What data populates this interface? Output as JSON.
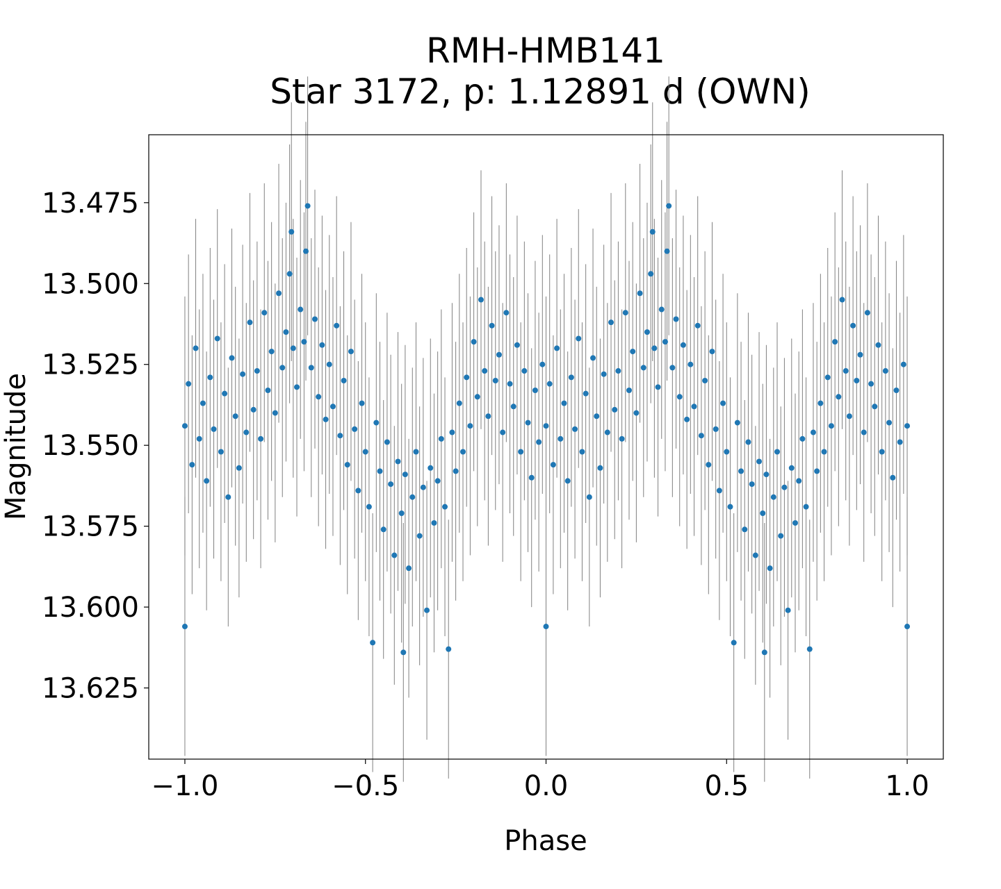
{
  "chart_data": {
    "type": "scatter",
    "title": "RMH-HMB141",
    "subtitle": "Star 3172, p: 1.12891 d (OWN)",
    "xlabel": "Phase",
    "ylabel": "Magnitude",
    "xlim": [
      -1.1,
      1.1
    ],
    "ylim": [
      13.454,
      13.647
    ],
    "y_inverted": true,
    "grid": false,
    "xticks": [
      -1.0,
      -0.5,
      0.0,
      0.5,
      1.0
    ],
    "xtick_labels": [
      "−1.0",
      "−0.5",
      "0.0",
      "0.5",
      "1.0"
    ],
    "yticks": [
      13.475,
      13.5,
      13.525,
      13.55,
      13.575,
      13.6,
      13.625
    ],
    "ytick_labels": [
      "13.475",
      "13.500",
      "13.525",
      "13.550",
      "13.575",
      "13.600",
      "13.625"
    ],
    "marker_color": "#1f77b4",
    "errorbar_color": "#808080",
    "yerr": 0.02,
    "note_repeat": "points plotted at phase and phase-1",
    "phase": [
      0.0,
      0.01,
      0.02,
      0.03,
      0.04,
      0.05,
      0.06,
      0.07,
      0.08,
      0.09,
      0.1,
      0.11,
      0.12,
      0.13,
      0.14,
      0.15,
      0.16,
      0.17,
      0.18,
      0.19,
      0.2,
      0.21,
      0.22,
      0.23,
      0.24,
      0.25,
      0.26,
      0.27,
      0.28,
      0.29,
      0.3,
      0.31,
      0.32,
      0.33,
      0.34,
      0.35,
      0.36,
      0.37,
      0.38,
      0.39,
      0.4,
      0.41,
      0.42,
      0.43,
      0.44,
      0.45,
      0.46,
      0.47,
      0.48,
      0.49,
      0.5,
      0.51,
      0.52,
      0.53,
      0.54,
      0.55,
      0.56,
      0.57,
      0.58,
      0.59,
      0.6,
      0.61,
      0.62,
      0.63,
      0.64,
      0.65,
      0.66,
      0.67,
      0.68,
      0.69,
      0.7,
      0.71,
      0.72,
      0.73,
      0.74,
      0.75,
      0.76,
      0.77,
      0.78,
      0.79,
      0.8,
      0.81,
      0.82,
      0.83,
      0.84,
      0.85,
      0.86,
      0.87,
      0.88,
      0.89,
      0.9,
      0.91,
      0.92,
      0.93,
      0.94,
      0.95,
      0.96,
      0.97,
      0.98,
      0.99,
      0.0,
      0.295,
      0.605,
      0.335
    ],
    "magnitude": [
      13.544,
      13.531,
      13.556,
      13.52,
      13.548,
      13.537,
      13.561,
      13.529,
      13.545,
      13.517,
      13.552,
      13.534,
      13.566,
      13.523,
      13.541,
      13.557,
      13.528,
      13.546,
      13.512,
      13.539,
      13.527,
      13.548,
      13.509,
      13.533,
      13.521,
      13.54,
      13.503,
      13.526,
      13.515,
      13.497,
      13.52,
      13.532,
      13.508,
      13.518,
      13.476,
      13.526,
      13.511,
      13.535,
      13.519,
      13.542,
      13.525,
      13.538,
      13.513,
      13.547,
      13.53,
      13.556,
      13.521,
      13.545,
      13.564,
      13.537,
      13.552,
      13.569,
      13.611,
      13.543,
      13.558,
      13.576,
      13.549,
      13.562,
      13.584,
      13.555,
      13.571,
      13.559,
      13.588,
      13.566,
      13.552,
      13.578,
      13.563,
      13.601,
      13.557,
      13.574,
      13.561,
      13.548,
      13.569,
      13.613,
      13.546,
      13.558,
      13.537,
      13.552,
      13.529,
      13.544,
      13.518,
      13.535,
      13.505,
      13.527,
      13.541,
      13.513,
      13.53,
      13.522,
      13.546,
      13.509,
      13.531,
      13.538,
      13.519,
      13.552,
      13.527,
      13.543,
      13.56,
      13.533,
      13.549,
      13.525,
      13.606,
      13.484,
      13.614,
      13.49
    ]
  }
}
